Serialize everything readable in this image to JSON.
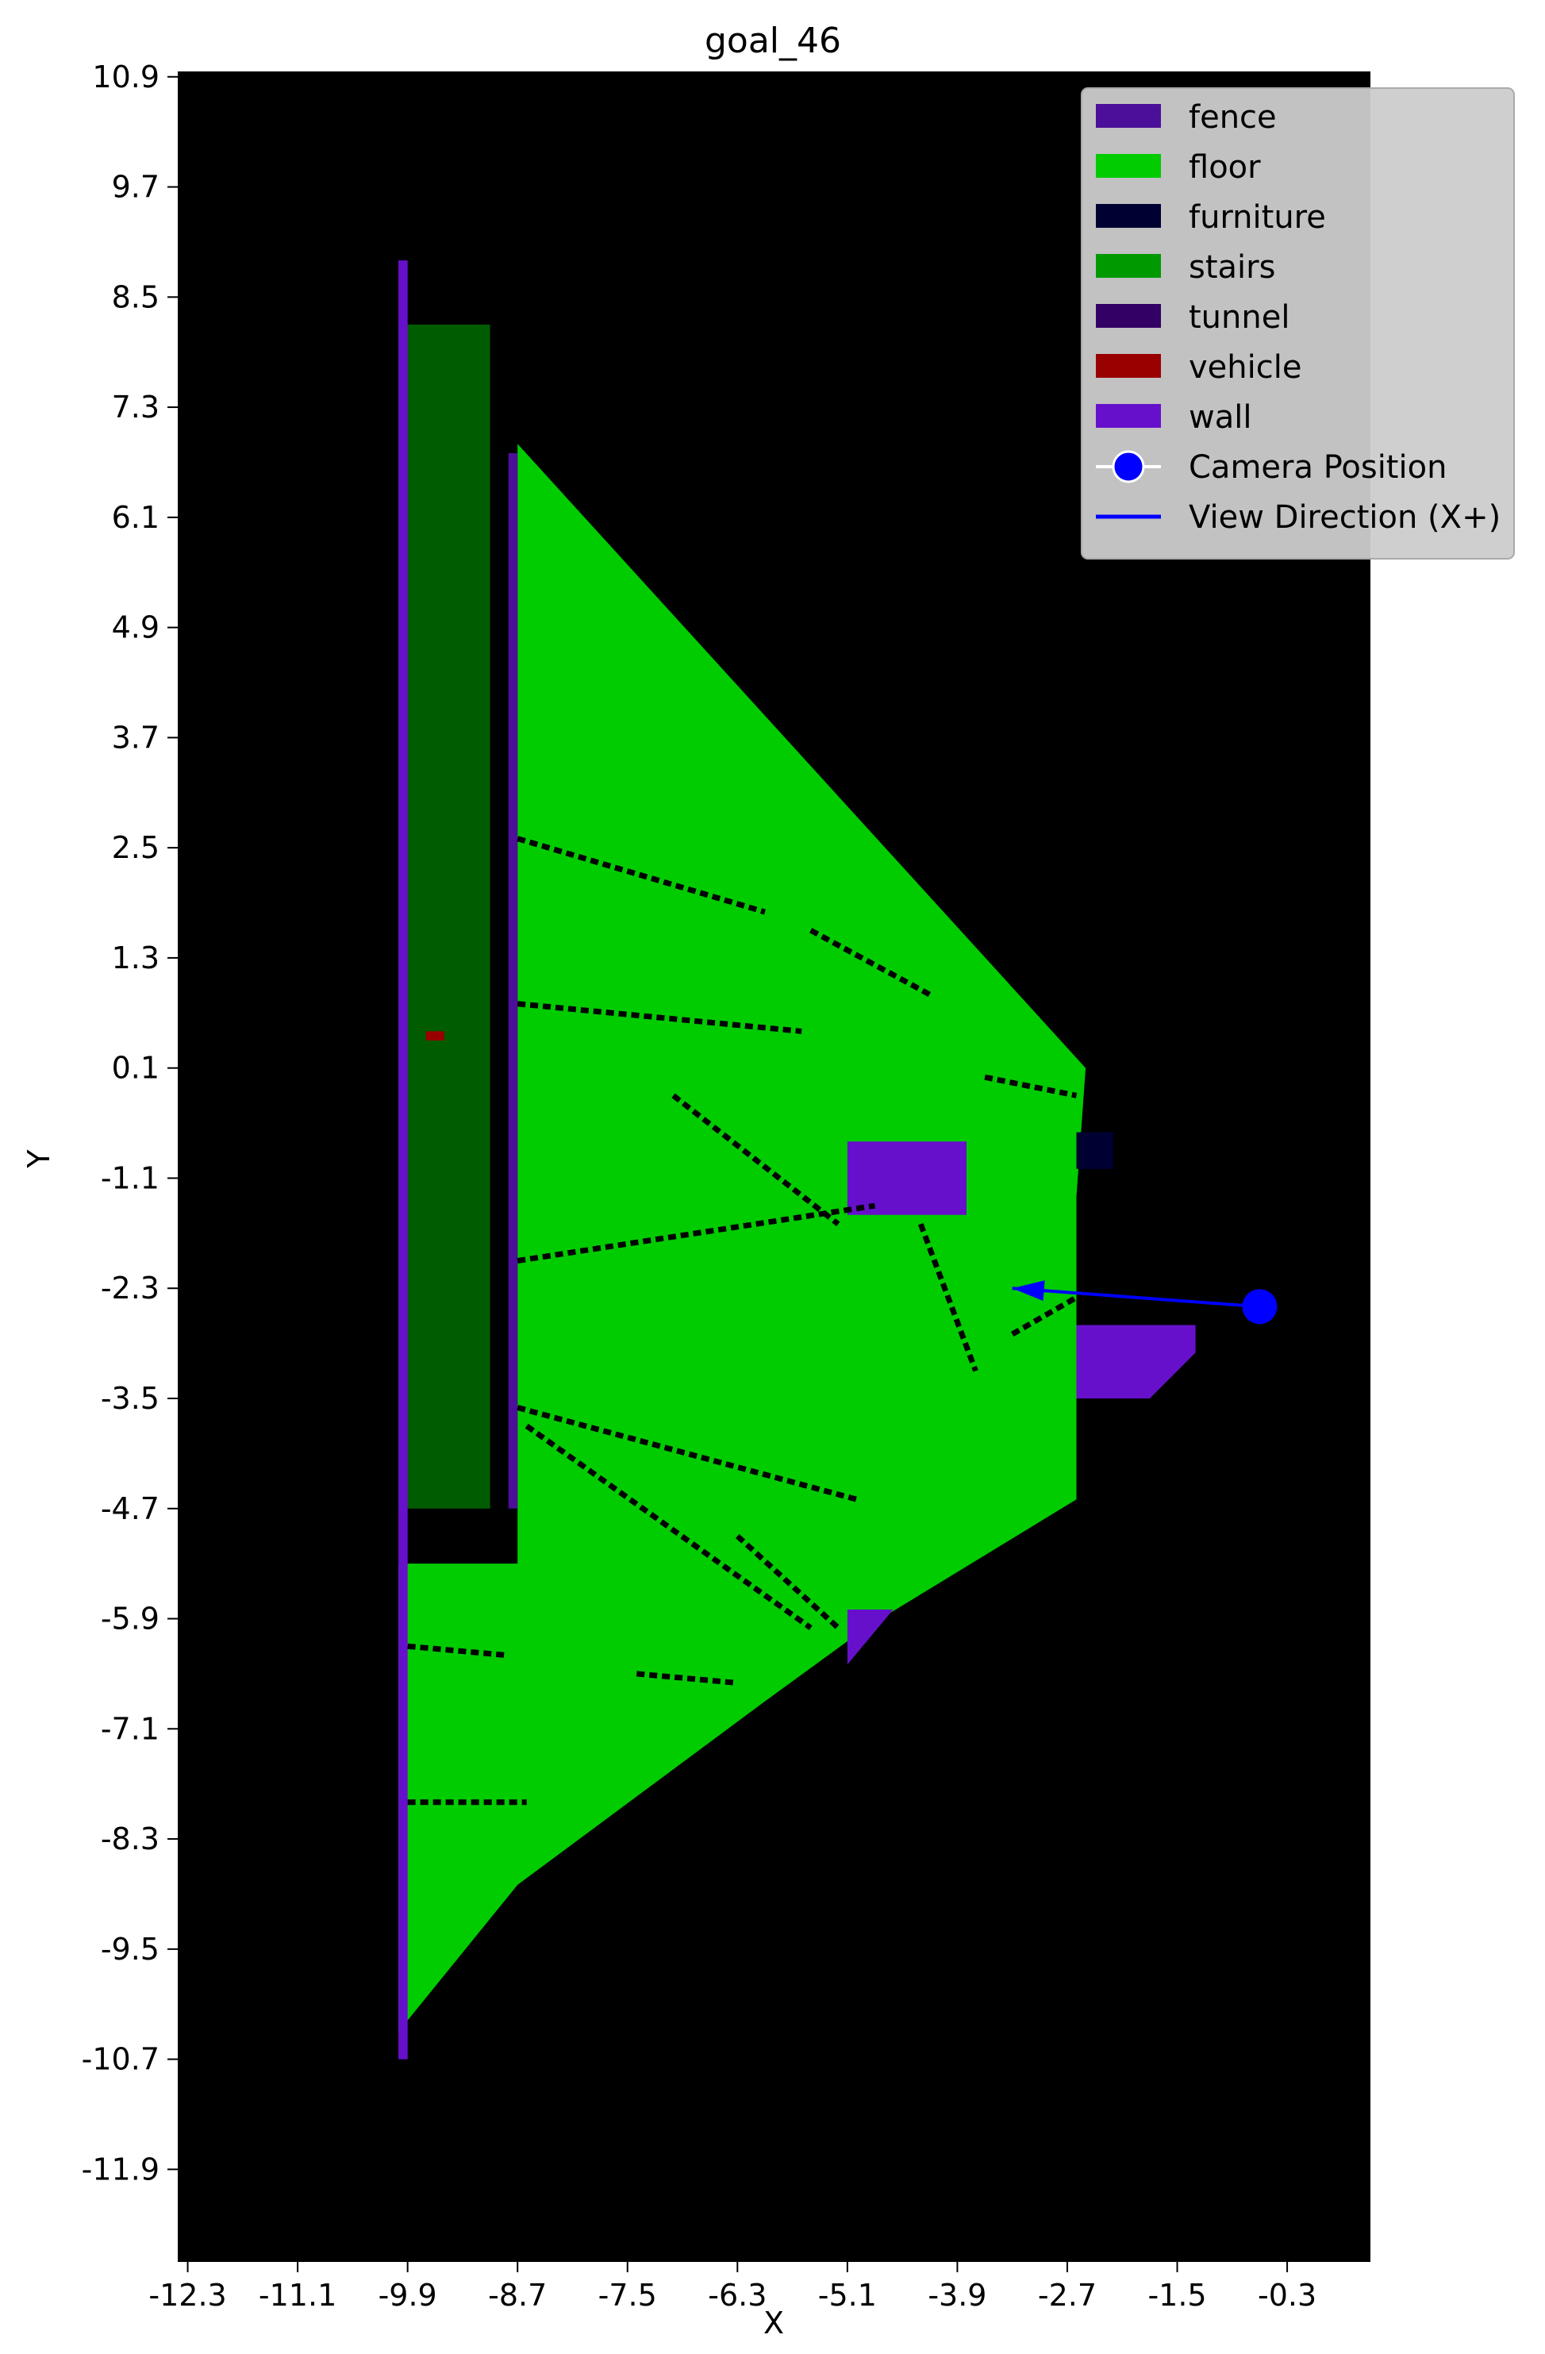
{
  "chart_data": {
    "type": "heatmap",
    "title": "goal_46",
    "xlabel": "X",
    "ylabel": "Y",
    "xlim": [
      -12.4,
      0.6
    ],
    "ylim": [
      -12.9,
      10.95
    ],
    "x_ticks": [
      -12.3,
      -11.1,
      -9.9,
      -8.7,
      -7.5,
      -6.3,
      -5.1,
      -3.9,
      -2.7,
      -1.5,
      -0.3
    ],
    "x_tick_labels": [
      "-12.3",
      "-11.1",
      "-9.9",
      "-8.7",
      "-7.5",
      "-6.3",
      "-5.1",
      "-3.9",
      "-2.7",
      "-1.5",
      "-0.3"
    ],
    "y_ticks": [
      10.9,
      9.7,
      8.5,
      7.3,
      6.1,
      4.9,
      3.7,
      2.5,
      1.3,
      0.1,
      -1.1,
      -2.3,
      -3.5,
      -4.7,
      -5.9,
      -7.1,
      -8.3,
      -9.5,
      -10.7,
      -11.9
    ],
    "y_tick_labels": [
      "10.9",
      "9.7",
      "8.5",
      "7.3",
      "6.1",
      "4.9",
      "3.7",
      "2.5",
      "1.3",
      "0.1",
      "-1.1",
      "-2.3",
      "-3.5",
      "-4.7",
      "-5.9",
      "-7.1",
      "-8.3",
      "-9.5",
      "-10.7",
      "-11.9"
    ],
    "background_color": "#000000",
    "grid": false,
    "legend_placement": "top-right",
    "legend": [
      {
        "label": "fence",
        "color": "#4b0f99",
        "kind": "patch"
      },
      {
        "label": "floor",
        "color": "#00cc00",
        "kind": "patch"
      },
      {
        "label": "furniture",
        "color": "#000033",
        "kind": "patch"
      },
      {
        "label": "stairs",
        "color": "#009900",
        "kind": "patch"
      },
      {
        "label": "tunnel",
        "color": "#330066",
        "kind": "patch"
      },
      {
        "label": "vehicle",
        "color": "#990000",
        "kind": "patch"
      },
      {
        "label": "wall",
        "color": "#6610cc",
        "kind": "patch"
      },
      {
        "label": "Camera Position",
        "color": "#0000ff",
        "kind": "marker"
      },
      {
        "label": "View Direction (X+)",
        "color": "#0000ff",
        "kind": "line"
      }
    ],
    "camera": {
      "x": -0.6,
      "y": -2.5
    },
    "view_direction": {
      "from": [
        -0.6,
        -2.5
      ],
      "to": [
        -3.3,
        -2.3
      ]
    },
    "regions": [
      {
        "class": "floor",
        "points": [
          [
            -8.7,
            6.9
          ],
          [
            -2.5,
            0.1
          ],
          [
            -2.6,
            -1.3
          ],
          [
            -2.6,
            -4.6
          ],
          [
            -4.9,
            -6.0
          ],
          [
            -6.0,
            -6.8
          ],
          [
            -8.7,
            -8.8
          ],
          [
            -10.0,
            -10.4
          ],
          [
            -10.0,
            -5.3
          ],
          [
            -8.7,
            -5.3
          ]
        ]
      },
      {
        "class": "floor",
        "points": [
          [
            -10.0,
            8.2
          ],
          [
            -9.0,
            8.2
          ],
          [
            -9.0,
            -4.7
          ],
          [
            -10.0,
            -4.7
          ]
        ],
        "opacity": 0.45
      },
      {
        "class": "wall",
        "points": [
          [
            -5.1,
            -0.7
          ],
          [
            -3.8,
            -0.7
          ],
          [
            -3.8,
            -1.5
          ],
          [
            -5.1,
            -1.5
          ]
        ]
      },
      {
        "class": "wall",
        "points": [
          [
            -2.6,
            -2.7
          ],
          [
            -1.3,
            -2.7
          ],
          [
            -1.3,
            -3.0
          ],
          [
            -1.8,
            -3.5
          ],
          [
            -2.6,
            -3.5
          ]
        ]
      },
      {
        "class": "wall",
        "points": [
          [
            -5.1,
            -5.8
          ],
          [
            -4.6,
            -5.8
          ],
          [
            -5.1,
            -6.4
          ]
        ]
      },
      {
        "class": "wall",
        "points": [
          [
            -10.0,
            8.9
          ],
          [
            -9.9,
            8.9
          ],
          [
            -9.9,
            -10.7
          ],
          [
            -10.0,
            -10.7
          ]
        ]
      },
      {
        "class": "fence",
        "points": [
          [
            -8.8,
            6.8
          ],
          [
            -8.7,
            6.8
          ],
          [
            -8.7,
            -4.7
          ],
          [
            -8.8,
            -4.7
          ]
        ]
      },
      {
        "class": "furniture",
        "points": [
          [
            -2.6,
            -0.6
          ],
          [
            -2.2,
            -0.6
          ],
          [
            -2.2,
            -1.0
          ],
          [
            -2.6,
            -1.0
          ]
        ]
      },
      {
        "class": "vehicle",
        "points": [
          [
            -9.7,
            0.5
          ],
          [
            -9.5,
            0.5
          ],
          [
            -9.5,
            0.4
          ],
          [
            -9.7,
            0.4
          ]
        ]
      }
    ],
    "obstacle_lines": [
      [
        [
          -8.7,
          -2.0
        ],
        [
          -4.8,
          -1.4
        ]
      ],
      [
        [
          -8.7,
          -3.6
        ],
        [
          -5.0,
          -4.6
        ]
      ],
      [
        [
          -8.6,
          -3.8
        ],
        [
          -5.5,
          -6.0
        ]
      ],
      [
        [
          -7.0,
          -0.2
        ],
        [
          -5.2,
          -1.6
        ]
      ],
      [
        [
          -3.3,
          -2.8
        ],
        [
          -2.6,
          -2.4
        ]
      ],
      [
        [
          -4.3,
          -1.6
        ],
        [
          -3.7,
          -3.2
        ]
      ],
      [
        [
          -6.3,
          -5.0
        ],
        [
          -5.2,
          -6.0
        ]
      ],
      [
        [
          -7.4,
          -6.5
        ],
        [
          -6.3,
          -6.6
        ]
      ],
      [
        [
          -9.9,
          -6.2
        ],
        [
          -8.8,
          -6.3
        ]
      ],
      [
        [
          -9.9,
          -7.9
        ],
        [
          -8.6,
          -7.9
        ]
      ],
      [
        [
          -8.7,
          2.6
        ],
        [
          -6.0,
          1.8
        ]
      ],
      [
        [
          -8.7,
          0.8
        ],
        [
          -5.6,
          0.5
        ]
      ],
      [
        [
          -5.5,
          1.6
        ],
        [
          -4.2,
          0.9
        ]
      ],
      [
        [
          -3.6,
          0.0
        ],
        [
          -2.6,
          -0.2
        ]
      ]
    ]
  }
}
